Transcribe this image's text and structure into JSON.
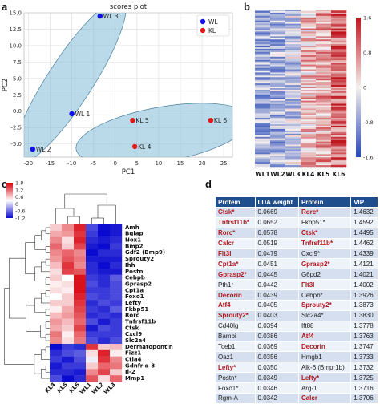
{
  "panels": {
    "a": "a",
    "b": "b",
    "c": "c",
    "d": "d"
  },
  "chart_data": [
    {
      "type": "scatter",
      "title": "scores plot",
      "xlabel": "PC1",
      "ylabel": "PC2",
      "xlim": [
        -21,
        27
      ],
      "ylim": [
        -7,
        15
      ],
      "xticks": [
        "-20",
        "-15",
        "-10",
        "-5",
        "0",
        "5",
        "10",
        "15",
        "20",
        "25"
      ],
      "yticks": [
        "-5.0",
        "-2.5",
        "0.0",
        "2.5",
        "5.0",
        "7.5",
        "10.0",
        "12.5",
        "15.0"
      ],
      "grid": true,
      "legend_position": "top-right",
      "series": [
        {
          "name": "WL",
          "color": "#1010e8",
          "points": [
            {
              "label": "WL 3",
              "x": -3.5,
              "y": 14.5
            },
            {
              "label": "WL 1",
              "x": -10,
              "y": -0.4
            },
            {
              "label": "WL 2",
              "x": -19,
              "y": -5.8
            }
          ]
        },
        {
          "name": "KL",
          "color": "#e01818",
          "points": [
            {
              "label": "KL 5",
              "x": 4,
              "y": -1.4
            },
            {
              "label": "KL 6",
              "x": 22,
              "y": -1.4
            },
            {
              "label": "KL 4",
              "x": 4.5,
              "y": -5.4
            }
          ]
        }
      ]
    },
    {
      "type": "heatmap",
      "columns": [
        "WL1",
        "WL2",
        "WL3",
        "KL4",
        "KL5",
        "KL6"
      ],
      "colorbar_ticks": [
        "1.6",
        "0.8",
        "0",
        "-0.8",
        "-1.6"
      ],
      "colorscale": [
        "#2548b8",
        "#f5f0ee",
        "#c0141c"
      ]
    },
    {
      "type": "heatmap",
      "columns": [
        "KL4",
        "KL5",
        "KL6",
        "WL1",
        "WL2",
        "WL3"
      ],
      "colorbar_ticks": [
        "1.8",
        "1.2",
        "0.6",
        "0",
        "-0.6",
        "-1.2"
      ],
      "colorscale": [
        "#0a0ad0",
        "#ffffff",
        "#d8000a"
      ],
      "rows": [
        "Amh",
        "Bglap",
        "Nox1",
        "Bmp2",
        "Gdf2 (Bmp9)",
        "Sprouty2",
        "Ihh",
        "Postn",
        "Cebpb",
        "Gprasp2",
        "Cpt1a",
        "Foxo1",
        "Lefty",
        "Fkbp51",
        "Rorc",
        "Tnfrsf11b",
        "Ctsk",
        "Cxcl9",
        "Slc2a4",
        "Dermatopontin",
        "Fizz1",
        "Ctla4",
        "Gdnfr α-3",
        "Il-2",
        "Mmp1"
      ],
      "values": [
        [
          0.6,
          1.0,
          1.6,
          -0.8,
          -1.3,
          -1.1
        ],
        [
          0.8,
          0.9,
          1.5,
          -0.9,
          -1.2,
          -1.1
        ],
        [
          1.0,
          0.5,
          1.6,
          -1.0,
          -1.1,
          -1.0
        ],
        [
          1.2,
          0.6,
          1.4,
          -1.1,
          -1.2,
          -0.9
        ],
        [
          1.0,
          1.2,
          1.0,
          -1.2,
          -1.0,
          -1.0
        ],
        [
          0.9,
          1.3,
          1.1,
          -1.1,
          -1.1,
          -1.1
        ],
        [
          0.7,
          1.5,
          1.0,
          -1.0,
          -1.2,
          -1.0
        ],
        [
          0.5,
          1.4,
          1.3,
          -1.0,
          -1.1,
          -1.1
        ],
        [
          0.6,
          0.3,
          1.7,
          -0.9,
          -1.0,
          -0.7
        ],
        [
          0.4,
          0.5,
          1.7,
          -0.8,
          -1.0,
          -0.8
        ],
        [
          0.5,
          0.4,
          1.7,
          -0.9,
          -0.9,
          -0.8
        ],
        [
          0.3,
          0.6,
          1.6,
          -0.8,
          -0.9,
          -0.8
        ],
        [
          0.6,
          0.6,
          1.5,
          -1.0,
          -0.8,
          -0.9
        ],
        [
          0.4,
          0.8,
          1.4,
          -0.9,
          -1.0,
          -0.7
        ],
        [
          0.7,
          0.9,
          1.3,
          -1.0,
          -0.9,
          -1.0
        ],
        [
          0.9,
          0.7,
          1.2,
          -0.8,
          -1.1,
          -0.9
        ],
        [
          0.8,
          0.6,
          1.4,
          -1.1,
          -0.8,
          -0.9
        ],
        [
          1.1,
          0.4,
          1.2,
          -0.9,
          -0.9,
          -0.9
        ],
        [
          1.0,
          0.5,
          1.1,
          -0.8,
          -1.0,
          -0.8
        ],
        [
          -1.2,
          -0.9,
          -1.0,
          1.5,
          0.6,
          0.7
        ],
        [
          -1.0,
          -0.8,
          -0.7,
          0.5,
          1.6,
          0.4
        ],
        [
          -0.9,
          -1.1,
          -0.8,
          0.2,
          1.5,
          1.0
        ],
        [
          -1.1,
          -0.9,
          -0.9,
          0.6,
          1.2,
          1.1
        ],
        [
          -1.0,
          -1.0,
          -1.1,
          1.0,
          1.4,
          0.6
        ],
        [
          -0.8,
          -1.2,
          -1.0,
          1.3,
          0.5,
          1.2
        ]
      ]
    },
    {
      "type": "table",
      "headers": [
        "Protein",
        "LDA weight",
        "Protein",
        "VIP"
      ],
      "rows": [
        [
          {
            "t": "Ctsk*",
            "r": true
          },
          {
            "t": "0.0669"
          },
          {
            "t": "Rorc*",
            "r": true
          },
          {
            "t": "1.4632"
          }
        ],
        [
          {
            "t": "Tnfrsf11b*",
            "r": true
          },
          {
            "t": "0.0652"
          },
          {
            "t": "Fkbp51*"
          },
          {
            "t": "1.4592"
          }
        ],
        [
          {
            "t": "Rorc*",
            "r": true
          },
          {
            "t": "0.0578"
          },
          {
            "t": "Ctsk*",
            "r": true
          },
          {
            "t": "1.4495"
          }
        ],
        [
          {
            "t": "Calcr",
            "r": true
          },
          {
            "t": "0.0519"
          },
          {
            "t": "Tnfrsf11b*",
            "r": true
          },
          {
            "t": "1.4462"
          }
        ],
        [
          {
            "t": "Flt3l",
            "r": true
          },
          {
            "t": "0.0479"
          },
          {
            "t": "Cxcl9*"
          },
          {
            "t": "1.4339"
          }
        ],
        [
          {
            "t": "Cpt1a*",
            "r": true
          },
          {
            "t": "0.0451"
          },
          {
            "t": "Gprasp2*",
            "r": true
          },
          {
            "t": "1.4121"
          }
        ],
        [
          {
            "t": "Gprasp2*",
            "r": true
          },
          {
            "t": "0.0445"
          },
          {
            "t": "G6pd2"
          },
          {
            "t": "1.4021"
          }
        ],
        [
          {
            "t": "Pth1r"
          },
          {
            "t": "0.0442"
          },
          {
            "t": "Flt3l",
            "r": true
          },
          {
            "t": "1.4002"
          }
        ],
        [
          {
            "t": "Decorin",
            "r": true
          },
          {
            "t": "0.0439"
          },
          {
            "t": "Cebpb*"
          },
          {
            "t": "1.3926"
          }
        ],
        [
          {
            "t": "Atf4",
            "r": true
          },
          {
            "t": "0.0405"
          },
          {
            "t": "Sprouty2*",
            "r": true
          },
          {
            "t": "1.3873"
          }
        ],
        [
          {
            "t": "Sprouty2*",
            "r": true
          },
          {
            "t": "0.0403"
          },
          {
            "t": "Slc2a4*"
          },
          {
            "t": "1.3830"
          }
        ],
        [
          {
            "t": "Cd40lg"
          },
          {
            "t": "0.0394"
          },
          {
            "t": "Ift88"
          },
          {
            "t": "1.3778"
          }
        ],
        [
          {
            "t": "Bambi"
          },
          {
            "t": "0.0386"
          },
          {
            "t": "Atf4",
            "r": true
          },
          {
            "t": "1.3763"
          }
        ],
        [
          {
            "t": "Tceb1"
          },
          {
            "t": "0.0369"
          },
          {
            "t": "Decorin",
            "r": true
          },
          {
            "t": "1.3747"
          }
        ],
        [
          {
            "t": "Oaz1"
          },
          {
            "t": "0.0356"
          },
          {
            "t": "Hmgb1"
          },
          {
            "t": "1.3733"
          }
        ],
        [
          {
            "t": "Lefty*",
            "r": true
          },
          {
            "t": "0.0350"
          },
          {
            "t": "Alk-6 (Bmpr1b)"
          },
          {
            "t": "1.3732"
          }
        ],
        [
          {
            "t": "Postn*"
          },
          {
            "t": "0.0349"
          },
          {
            "t": "Lefty*",
            "r": true
          },
          {
            "t": "1.3725"
          }
        ],
        [
          {
            "t": "Foxo1*"
          },
          {
            "t": "0.0346"
          },
          {
            "t": "Arg-1"
          },
          {
            "t": "1.3716"
          }
        ],
        [
          {
            "t": "Rgm-A"
          },
          {
            "t": "0.0342"
          },
          {
            "t": "Calcr",
            "r": true
          },
          {
            "t": "1.3706"
          }
        ]
      ]
    }
  ]
}
